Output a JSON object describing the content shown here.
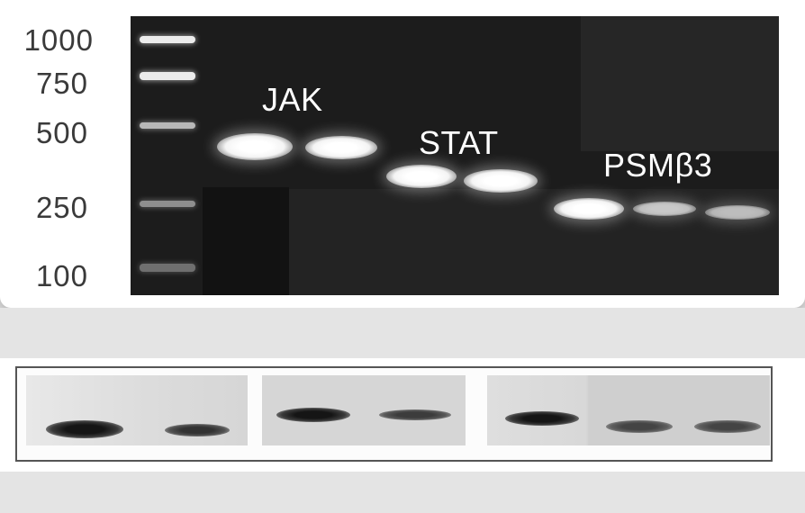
{
  "marker_labels": [
    "1000",
    "750",
    "500",
    "250",
    "100"
  ],
  "gel_labels": {
    "jak": "JAK",
    "stat": "STAT",
    "psm": "PSMβ3"
  },
  "colors": {
    "gel_background": "#1c1c1c",
    "band": "#ffffff",
    "blot_background": "#d8d8d8",
    "blot_band": "#151515",
    "page_background": "#e4e4e4"
  }
}
